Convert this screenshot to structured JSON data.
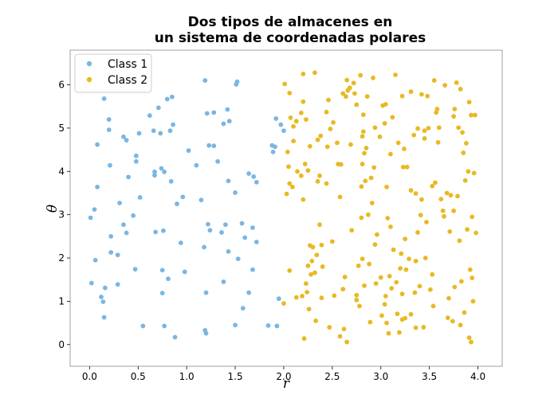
{
  "chart_data": {
    "type": "scatter",
    "title_lines": [
      "Dos tipos de almacenes en",
      "un sistema de coordenadas polares"
    ],
    "xlabel": "r",
    "ylabel": "θ",
    "xlim": [
      -0.2,
      4.25
    ],
    "ylim": [
      -0.5,
      6.8
    ],
    "xticks": [
      0.0,
      0.5,
      1.0,
      1.5,
      2.0,
      2.5,
      3.0,
      3.5,
      4.0
    ],
    "xtick_labels": [
      "0.0",
      "0.5",
      "1.0",
      "1.5",
      "2.0",
      "2.5",
      "3.0",
      "3.5",
      "4.0"
    ],
    "yticks": [
      0,
      1,
      2,
      3,
      4,
      5,
      6
    ],
    "ytick_labels": [
      "0",
      "1",
      "2",
      "3",
      "4",
      "5",
      "6"
    ],
    "grid": false,
    "legend_position": "top-left",
    "series": [
      {
        "name": "Class 1",
        "color": "#7ab6e2",
        "points": [
          [
            0.01,
            2.93
          ],
          [
            0.02,
            1.42
          ],
          [
            0.05,
            3.12
          ],
          [
            0.06,
            1.95
          ],
          [
            0.08,
            3.64
          ],
          [
            0.08,
            4.62
          ],
          [
            0.12,
            1.1
          ],
          [
            0.14,
            0.99
          ],
          [
            0.15,
            5.68
          ],
          [
            0.15,
            0.63
          ],
          [
            0.16,
            1.31
          ],
          [
            0.2,
            5.2
          ],
          [
            0.2,
            4.96
          ],
          [
            0.21,
            4.14
          ],
          [
            0.22,
            2.5
          ],
          [
            0.22,
            2.13
          ],
          [
            0.28,
            5.88
          ],
          [
            0.29,
            2.07
          ],
          [
            0.29,
            1.39
          ],
          [
            0.31,
            3.27
          ],
          [
            0.35,
            4.8
          ],
          [
            0.35,
            2.77
          ],
          [
            0.38,
            2.58
          ],
          [
            0.38,
            4.72
          ],
          [
            0.4,
            3.87
          ],
          [
            0.45,
            2.98
          ],
          [
            0.47,
            1.74
          ],
          [
            0.48,
            4.36
          ],
          [
            0.48,
            4.23
          ],
          [
            0.51,
            4.88
          ],
          [
            0.52,
            3.4
          ],
          [
            0.55,
            0.43
          ],
          [
            0.62,
            5.29
          ],
          [
            0.66,
            4.94
          ],
          [
            0.67,
            3.99
          ],
          [
            0.67,
            3.91
          ],
          [
            0.68,
            2.6
          ],
          [
            0.71,
            5.47
          ],
          [
            0.73,
            4.88
          ],
          [
            0.74,
            4.07
          ],
          [
            0.75,
            1.19
          ],
          [
            0.75,
            1.72
          ],
          [
            0.76,
            2.63
          ],
          [
            0.77,
            3.99
          ],
          [
            0.77,
            0.43
          ],
          [
            0.8,
            5.67
          ],
          [
            0.81,
            1.52
          ],
          [
            0.83,
            4.94
          ],
          [
            0.85,
            5.72
          ],
          [
            0.84,
            3.77
          ],
          [
            0.86,
            5.08
          ],
          [
            0.88,
            0.17
          ],
          [
            0.9,
            3.25
          ],
          [
            0.94,
            2.35
          ],
          [
            0.96,
            3.41
          ],
          [
            0.98,
            1.68
          ],
          [
            1.02,
            4.48
          ],
          [
            1.1,
            4.14
          ],
          [
            1.15,
            3.34
          ],
          [
            1.18,
            2.25
          ],
          [
            1.19,
            6.1
          ],
          [
            1.19,
            0.33
          ],
          [
            1.2,
            1.2
          ],
          [
            1.2,
            0.26
          ],
          [
            1.21,
            5.34
          ],
          [
            1.22,
            2.78
          ],
          [
            1.23,
            4.6
          ],
          [
            1.24,
            2.64
          ],
          [
            1.28,
            5.36
          ],
          [
            1.28,
            4.59
          ],
          [
            1.32,
            4.23
          ],
          [
            1.36,
            2.59
          ],
          [
            1.38,
            1.45
          ],
          [
            1.38,
            5.1
          ],
          [
            1.4,
            2.77
          ],
          [
            1.42,
            5.43
          ],
          [
            1.43,
            3.78
          ],
          [
            1.43,
            2.15
          ],
          [
            1.44,
            5.16
          ],
          [
            1.5,
            3.51
          ],
          [
            1.5,
            0.45
          ],
          [
            1.51,
            6.01
          ],
          [
            1.52,
            6.07
          ],
          [
            1.53,
            1.98
          ],
          [
            1.57,
            2.8
          ],
          [
            1.58,
            0.84
          ],
          [
            1.6,
            2.47
          ],
          [
            1.64,
            1.2
          ],
          [
            1.64,
            3.95
          ],
          [
            1.68,
            2.7
          ],
          [
            1.68,
            1.73
          ],
          [
            1.69,
            3.88
          ],
          [
            1.72,
            3.75
          ],
          [
            1.72,
            2.37
          ],
          [
            1.84,
            0.44
          ],
          [
            1.88,
            4.6
          ],
          [
            1.89,
            4.45
          ],
          [
            1.91,
            4.57
          ],
          [
            1.93,
            0.43
          ],
          [
            1.95,
            1.06
          ],
          [
            1.97,
            5.08
          ],
          [
            1.92,
            5.22
          ],
          [
            2.0,
            4.94
          ]
        ]
      },
      {
        "name": "Class 2",
        "color": "#e8b923",
        "points": [
          [
            2.0,
            0.95
          ],
          [
            2.01,
            6.02
          ],
          [
            2.03,
            3.48
          ],
          [
            2.04,
            4.45
          ],
          [
            2.05,
            4.11
          ],
          [
            2.06,
            3.72
          ],
          [
            2.06,
            1.71
          ],
          [
            2.07,
            5.24
          ],
          [
            2.06,
            5.81
          ],
          [
            2.09,
            3.64
          ],
          [
            2.1,
            4.7
          ],
          [
            2.1,
            5.04
          ],
          [
            2.13,
            1.09
          ],
          [
            2.13,
            5.16
          ],
          [
            2.14,
            4.0
          ],
          [
            2.18,
            3.9
          ],
          [
            2.18,
            5.35
          ],
          [
            2.19,
            1.12
          ],
          [
            2.2,
            3.35
          ],
          [
            2.2,
            5.61
          ],
          [
            2.2,
            6.25
          ],
          [
            2.21,
            0.14
          ],
          [
            2.22,
            4.17
          ],
          [
            2.23,
            1.41
          ],
          [
            2.23,
            5.2
          ],
          [
            2.24,
            1.21
          ],
          [
            2.25,
            4.02
          ],
          [
            2.25,
            1.82
          ],
          [
            2.26,
            0.82
          ],
          [
            2.27,
            2.29
          ],
          [
            2.27,
            4.58
          ],
          [
            2.28,
            1.62
          ],
          [
            2.29,
            1.93
          ],
          [
            2.3,
            2.25
          ],
          [
            2.32,
            6.28
          ],
          [
            2.32,
            1.66
          ],
          [
            2.33,
            0.55
          ],
          [
            2.34,
            2.07
          ],
          [
            2.35,
            3.77
          ],
          [
            2.35,
            4.73
          ],
          [
            2.37,
            2.77
          ],
          [
            2.37,
            3.9
          ],
          [
            2.38,
            4.82
          ],
          [
            2.39,
            2.3
          ],
          [
            2.39,
            1.08
          ],
          [
            2.4,
            1.8
          ],
          [
            2.44,
            5.37
          ],
          [
            2.44,
            3.72
          ],
          [
            2.45,
            4.57
          ],
          [
            2.46,
            5.65
          ],
          [
            2.47,
            0.4
          ],
          [
            2.48,
            4.98
          ],
          [
            2.5,
            2.38
          ],
          [
            2.51,
            5.13
          ],
          [
            2.52,
            1.13
          ],
          [
            2.55,
            4.66
          ],
          [
            2.56,
            4.17
          ],
          [
            2.58,
            3.41
          ],
          [
            2.58,
            0.19
          ],
          [
            2.59,
            4.16
          ],
          [
            2.61,
            5.8
          ],
          [
            2.61,
            1.28
          ],
          [
            2.63,
            1.56
          ],
          [
            2.62,
            0.36
          ],
          [
            2.64,
            5.73
          ],
          [
            2.65,
            6.11
          ],
          [
            2.65,
            0.06
          ],
          [
            2.66,
            5.87
          ],
          [
            2.68,
            5.93
          ],
          [
            2.69,
            4.62
          ],
          [
            2.7,
            2.64
          ],
          [
            2.72,
            6.04
          ],
          [
            2.73,
            5.8
          ],
          [
            2.75,
            5.54
          ],
          [
            2.75,
            1.14
          ],
          [
            2.75,
            1.03
          ],
          [
            2.77,
            1.82
          ],
          [
            2.78,
            0.89
          ],
          [
            2.79,
            6.22
          ],
          [
            2.8,
            3.65
          ],
          [
            2.8,
            2.93
          ],
          [
            2.81,
            4.81
          ],
          [
            2.81,
            4.17
          ],
          [
            2.81,
            1.98
          ],
          [
            2.82,
            5.31
          ],
          [
            2.82,
            4.92
          ],
          [
            2.83,
            1.36
          ],
          [
            2.83,
            4.42
          ],
          [
            2.84,
            3.78
          ],
          [
            2.85,
            4.54
          ],
          [
            2.86,
            5.73
          ],
          [
            2.87,
            3.0
          ],
          [
            2.88,
            1.86
          ],
          [
            2.89,
            0.52
          ],
          [
            2.9,
            3.85
          ],
          [
            2.91,
            3.27
          ],
          [
            2.92,
            6.16
          ],
          [
            2.93,
            4.09
          ],
          [
            2.94,
            2.31
          ],
          [
            2.94,
            5.01
          ],
          [
            2.95,
            1.41
          ],
          [
            2.96,
            2.54
          ],
          [
            2.99,
            4.8
          ],
          [
            3.0,
            1.55
          ],
          [
            3.01,
            0.67
          ],
          [
            3.02,
            5.52
          ],
          [
            3.04,
            0.93
          ],
          [
            3.04,
            5.11
          ],
          [
            3.05,
            5.55
          ],
          [
            3.05,
            1.12
          ],
          [
            3.06,
            3.64
          ],
          [
            3.06,
            0.5
          ],
          [
            3.07,
            2.92
          ],
          [
            3.08,
            0.26
          ],
          [
            3.09,
            1.58
          ],
          [
            3.1,
            4.4
          ],
          [
            3.1,
            2.72
          ],
          [
            3.11,
            1.3
          ],
          [
            3.12,
            5.25
          ],
          [
            3.13,
            2.19
          ],
          [
            3.15,
            6.23
          ],
          [
            3.16,
            1.44
          ],
          [
            3.17,
            0.71
          ],
          [
            3.18,
            4.66
          ],
          [
            3.19,
            0.28
          ],
          [
            3.2,
            1.76
          ],
          [
            3.21,
            2.1
          ],
          [
            3.22,
            5.74
          ],
          [
            3.22,
            0.58
          ],
          [
            3.22,
            1.17
          ],
          [
            3.23,
            4.1
          ],
          [
            3.24,
            4.52
          ],
          [
            3.25,
            2.44
          ],
          [
            3.25,
            0.61
          ],
          [
            3.26,
            1.73
          ],
          [
            3.27,
            4.1
          ],
          [
            3.29,
            1.98
          ],
          [
            3.31,
            3.56
          ],
          [
            3.31,
            0.7
          ],
          [
            3.31,
            5.84
          ],
          [
            3.34,
            4.84
          ],
          [
            3.35,
            1.2
          ],
          [
            3.36,
            1.93
          ],
          [
            3.36,
            0.39
          ],
          [
            3.36,
            3.49
          ],
          [
            3.38,
            4.99
          ],
          [
            3.38,
            2.59
          ],
          [
            3.4,
            1.35
          ],
          [
            3.41,
            2.99
          ],
          [
            3.42,
            5.78
          ],
          [
            3.42,
            3.35
          ],
          [
            3.44,
            0.4
          ],
          [
            3.45,
            4.94
          ],
          [
            3.45,
            4.76
          ],
          [
            3.46,
            2.0
          ],
          [
            3.47,
            2.83
          ],
          [
            3.48,
            5.74
          ],
          [
            3.49,
            5.0
          ],
          [
            3.51,
            1.27
          ],
          [
            3.53,
            1.62
          ],
          [
            3.53,
            3.66
          ],
          [
            3.54,
            0.89
          ],
          [
            3.55,
            6.1
          ],
          [
            3.56,
            3.74
          ],
          [
            3.57,
            5.36
          ],
          [
            3.58,
            5.44
          ],
          [
            3.59,
            4.67
          ],
          [
            3.6,
            5.01
          ],
          [
            3.62,
            3.36
          ],
          [
            3.64,
            3.09
          ],
          [
            3.65,
            2.96
          ],
          [
            3.66,
            5.99
          ],
          [
            3.68,
            3.5
          ],
          [
            3.69,
            0.62
          ],
          [
            3.7,
            1.07
          ],
          [
            3.71,
            2.61
          ],
          [
            3.72,
            3.45
          ],
          [
            3.74,
            0.54
          ],
          [
            3.75,
            5.27
          ],
          [
            3.75,
            3.09
          ],
          [
            3.76,
            5.44
          ],
          [
            3.76,
            1.33
          ],
          [
            3.78,
            6.05
          ],
          [
            3.79,
            3.43
          ],
          [
            3.8,
            5.01
          ],
          [
            3.81,
            2.4
          ],
          [
            3.82,
            0.45
          ],
          [
            3.82,
            5.9
          ],
          [
            3.83,
            1.46
          ],
          [
            3.84,
            4.9
          ],
          [
            3.85,
            4.43
          ],
          [
            3.86,
            0.74
          ],
          [
            3.87,
            3.79
          ],
          [
            3.88,
            4.65
          ],
          [
            3.89,
            2.66
          ],
          [
            3.9,
            4.0
          ],
          [
            3.91,
            0.16
          ],
          [
            3.91,
            5.6
          ],
          [
            3.92,
            1.73
          ],
          [
            3.93,
            0.06
          ],
          [
            3.93,
            5.3
          ],
          [
            3.94,
            2.95
          ],
          [
            3.94,
            1.54
          ],
          [
            3.95,
            1.0
          ],
          [
            3.96,
            3.96
          ],
          [
            3.97,
            5.3
          ],
          [
            3.98,
            2.58
          ]
        ]
      }
    ]
  }
}
